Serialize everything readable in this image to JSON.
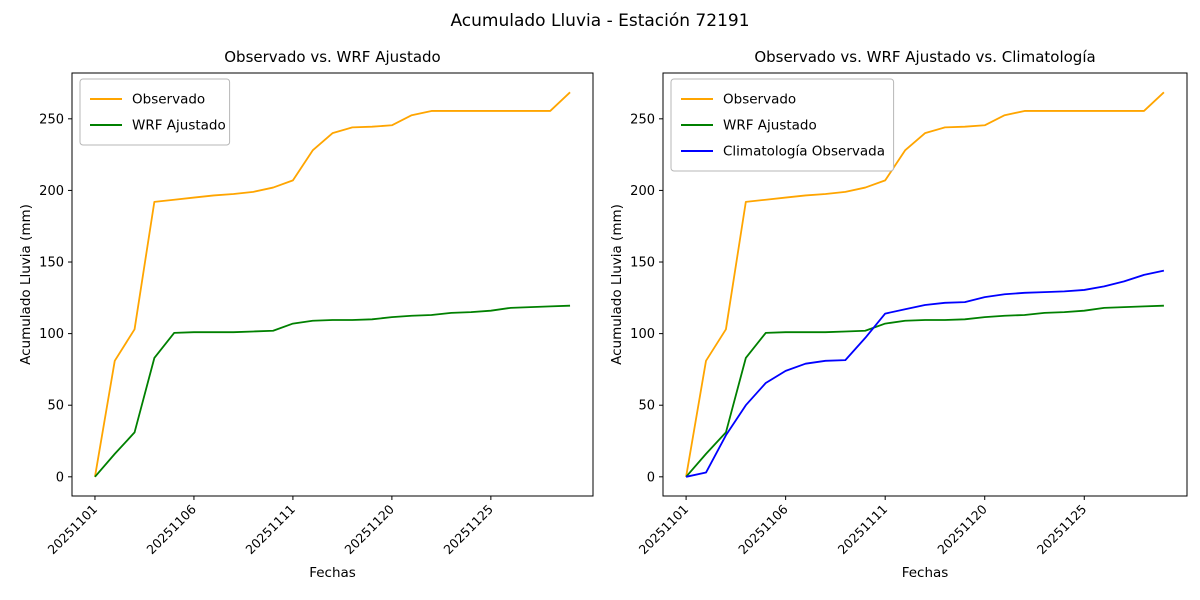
{
  "figure": {
    "title": "Acumulado Lluvia - Estación 72191"
  },
  "chart_data": [
    {
      "type": "line",
      "title": "Observado vs. WRF Ajustado",
      "xlabel": "Fechas",
      "ylabel": "Acumulado Lluvia (mm)",
      "x": [
        0,
        1,
        2,
        3,
        4,
        5,
        6,
        7,
        8,
        9,
        10,
        11,
        12,
        13,
        14,
        15,
        16,
        17,
        18,
        19,
        20,
        21,
        22,
        23,
        24
      ],
      "x_tick_positions": [
        0,
        5,
        10,
        15,
        20
      ],
      "x_tick_labels": [
        "20251101",
        "20251106",
        "20251111",
        "20251120",
        "20251125"
      ],
      "y_ticks": [
        0,
        50,
        100,
        150,
        200,
        250
      ],
      "xlim": [
        -1.16,
        25.16
      ],
      "ylim": [
        -13.4,
        282
      ],
      "grid": false,
      "legend_position": "upper-left",
      "series": [
        {
          "name": "Observado",
          "color": "#FFA500",
          "values": [
            0,
            81,
            103,
            192,
            193.5,
            195,
            196.5,
            197.5,
            199,
            202,
            207,
            228,
            240,
            244,
            244.5,
            245.5,
            252.5,
            255.5,
            255.5,
            255.5,
            255.5,
            255.5,
            255.5,
            255.5,
            268.5
          ]
        },
        {
          "name": "WRF Ajustado",
          "color": "#008000",
          "values": [
            0,
            16,
            31,
            83,
            100.5,
            101,
            101,
            101,
            101.5,
            102,
            107,
            109,
            109.5,
            109.5,
            110,
            111.5,
            112.5,
            113,
            114.5,
            115,
            116,
            118,
            118.5,
            119,
            119.5
          ]
        }
      ]
    },
    {
      "type": "line",
      "title": "Observado vs. WRF Ajustado vs. Climatología",
      "xlabel": "Fechas",
      "ylabel": "Acumulado Lluvia (mm)",
      "x": [
        0,
        1,
        2,
        3,
        4,
        5,
        6,
        7,
        8,
        9,
        10,
        11,
        12,
        13,
        14,
        15,
        16,
        17,
        18,
        19,
        20,
        21,
        22,
        23,
        24
      ],
      "x_tick_positions": [
        0,
        5,
        10,
        15,
        20
      ],
      "x_tick_labels": [
        "20251101",
        "20251106",
        "20251111",
        "20251120",
        "20251125"
      ],
      "y_ticks": [
        0,
        50,
        100,
        150,
        200,
        250
      ],
      "xlim": [
        -1.16,
        25.16
      ],
      "ylim": [
        -13.4,
        282
      ],
      "grid": false,
      "legend_position": "upper-left",
      "series": [
        {
          "name": "Observado",
          "color": "#FFA500",
          "values": [
            0,
            81,
            103,
            192,
            193.5,
            195,
            196.5,
            197.5,
            199,
            202,
            207,
            228,
            240,
            244,
            244.5,
            245.5,
            252.5,
            255.5,
            255.5,
            255.5,
            255.5,
            255.5,
            255.5,
            255.5,
            268.5
          ]
        },
        {
          "name": "WRF Ajustado",
          "color": "#008000",
          "values": [
            0,
            16,
            31,
            83,
            100.5,
            101,
            101,
            101,
            101.5,
            102,
            107,
            109,
            109.5,
            109.5,
            110,
            111.5,
            112.5,
            113,
            114.5,
            115,
            116,
            118,
            118.5,
            119,
            119.5
          ]
        },
        {
          "name": "Climatología Observada",
          "color": "#0000FF",
          "values": [
            0,
            3,
            29,
            50,
            65.5,
            74,
            79,
            81,
            81.5,
            97,
            114,
            117,
            120,
            121.5,
            122,
            125.5,
            127.5,
            128.5,
            129,
            129.5,
            130.5,
            133,
            136.5,
            141,
            144
          ]
        }
      ]
    }
  ]
}
